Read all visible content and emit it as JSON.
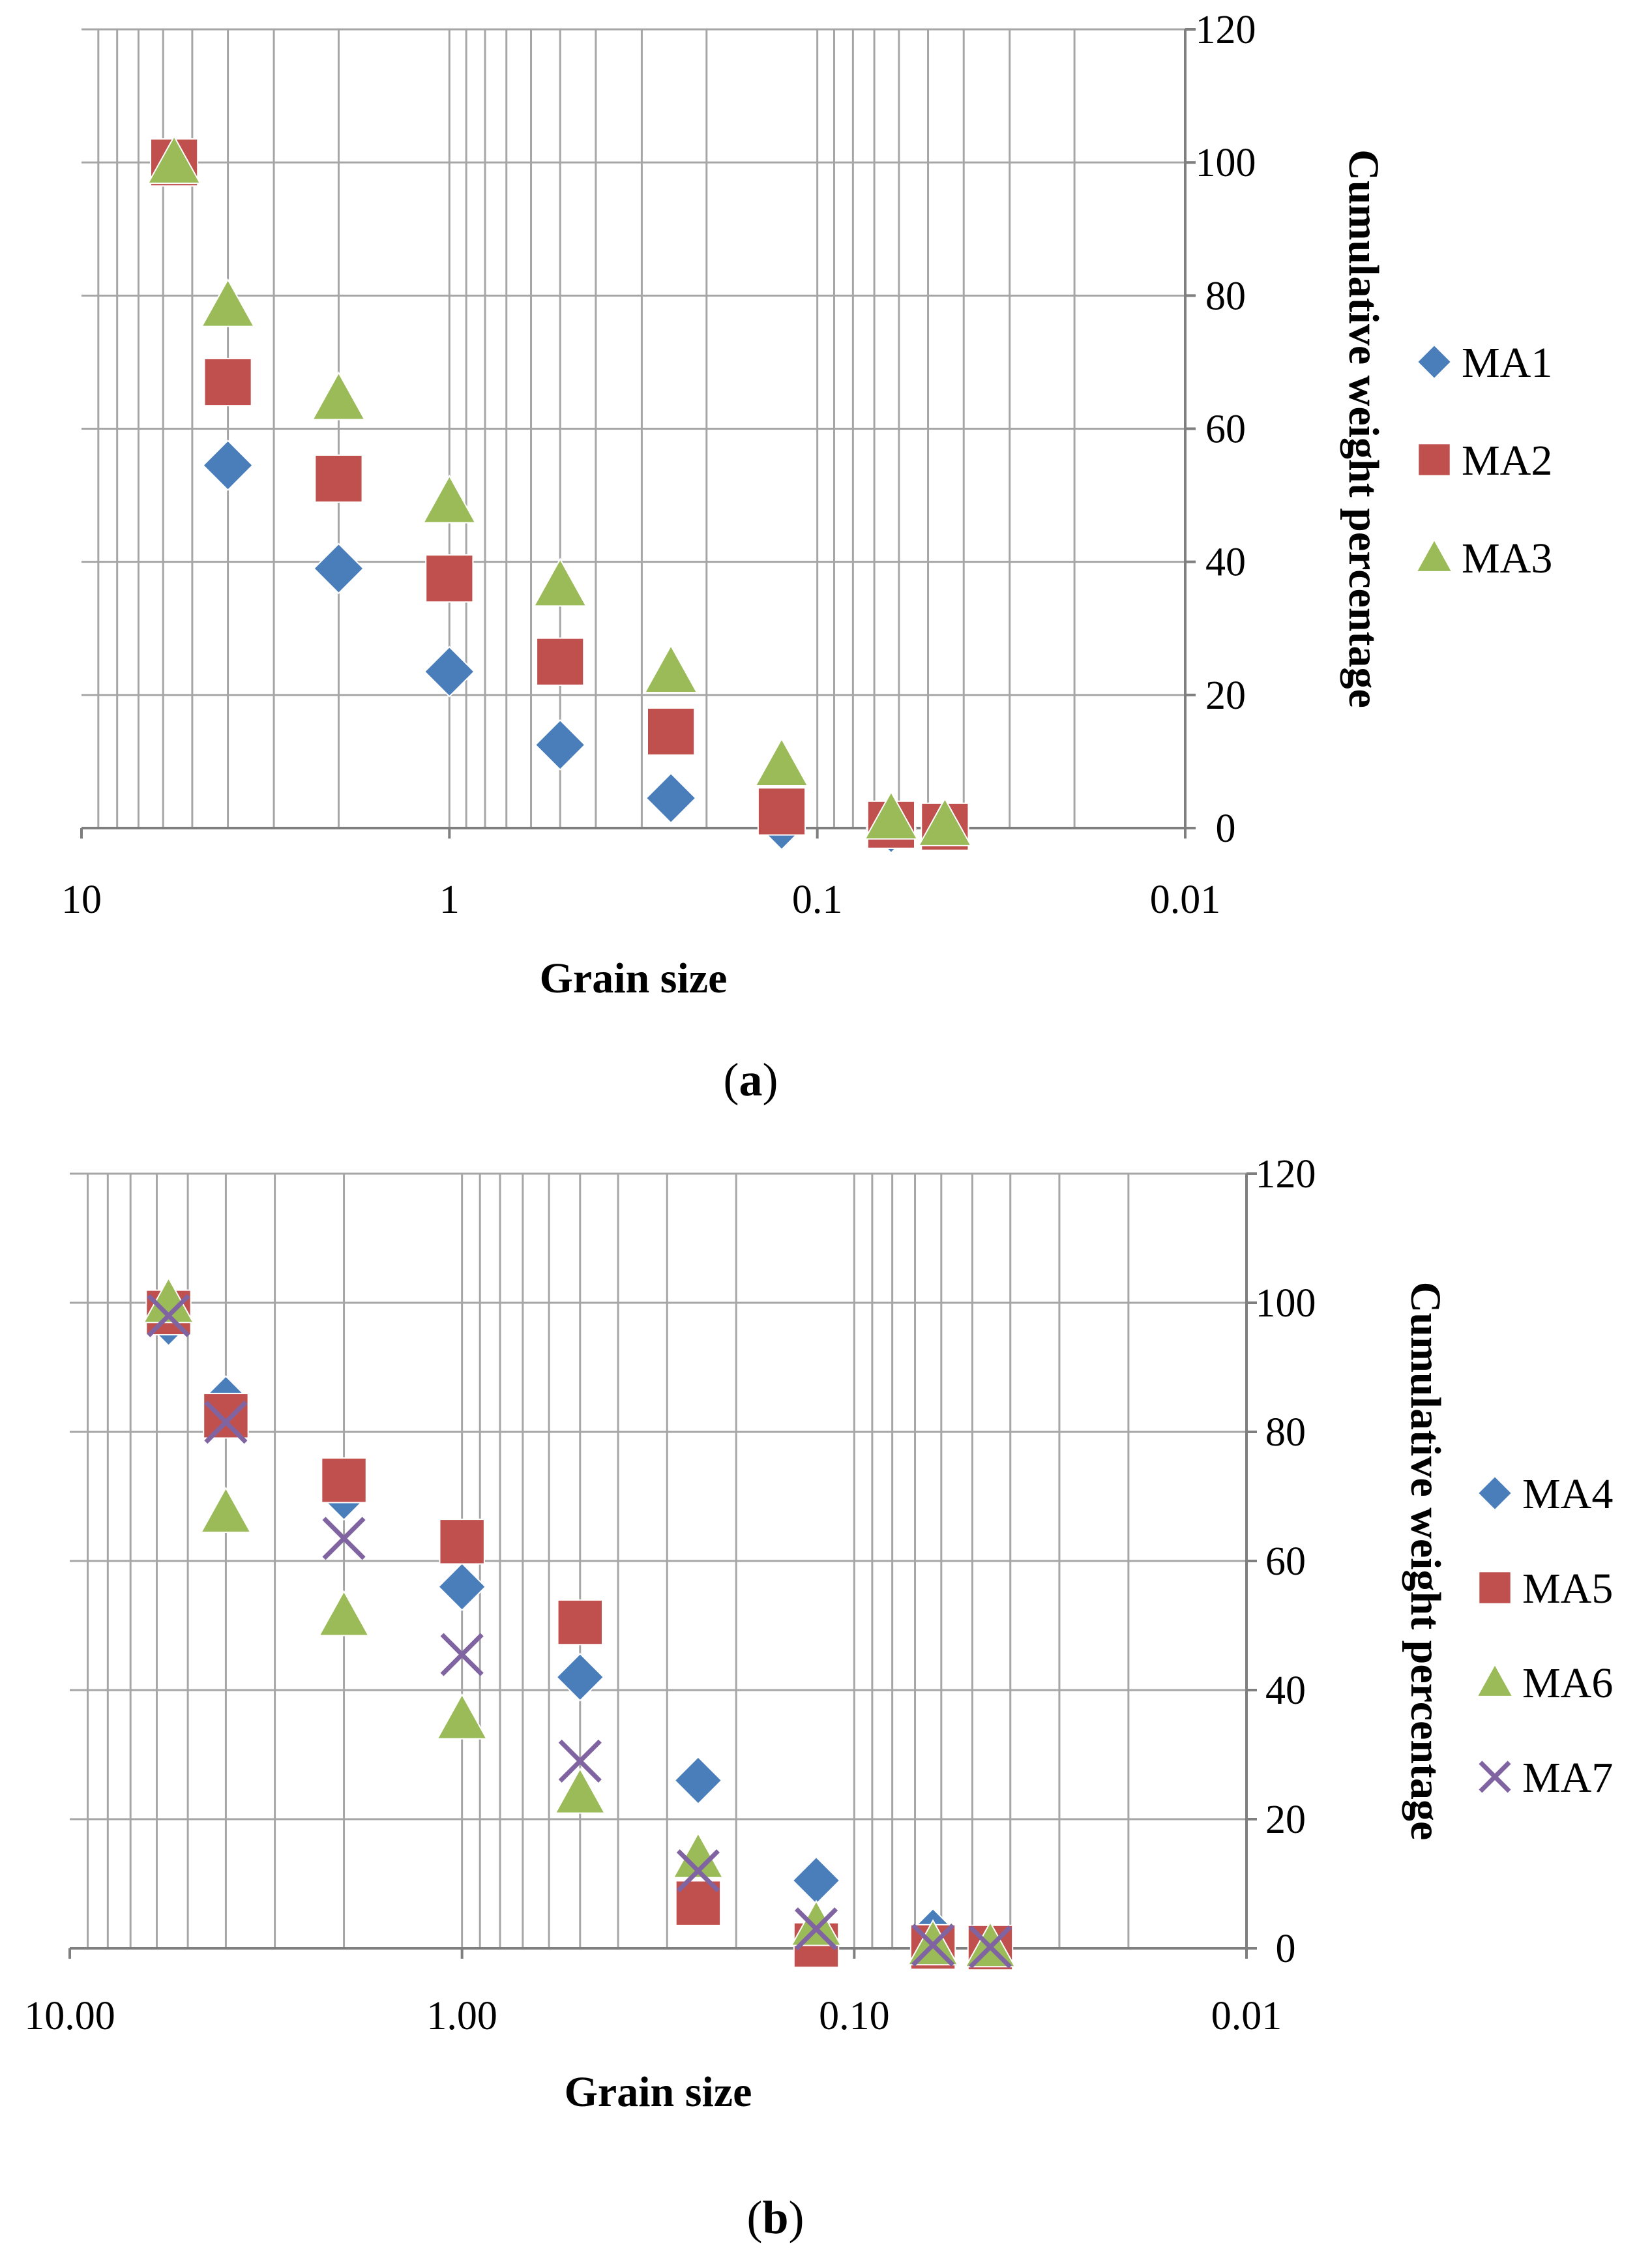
{
  "chart_data": [
    {
      "type": "scatter",
      "caption_letter": "a",
      "xlabel": "Grain size",
      "ylabel": "Cumulative weight percentage",
      "x_scale": "log",
      "x_reversed": true,
      "xlim": [
        10,
        0.01
      ],
      "ylim": [
        0,
        120
      ],
      "x_ticks": [
        10,
        1,
        0.1,
        0.01
      ],
      "x_tick_labels": [
        "10",
        "1",
        "0.1",
        "0.01"
      ],
      "y_ticks": [
        0,
        20,
        40,
        60,
        80,
        100,
        120
      ],
      "y_tick_labels": [
        "0",
        "20",
        "40",
        "60",
        "80",
        "100",
        "120"
      ],
      "y_axis_position": "right",
      "grid": true,
      "legend_position": "right",
      "series": [
        {
          "name": "MA1",
          "marker": "diamond",
          "color": "#4A7EBB",
          "x": [
            4,
            2,
            1,
            0.5,
            0.25,
            0.125,
            0.063
          ],
          "y": [
            54.5,
            39,
            23.5,
            12.5,
            4.5,
            0.5,
            0
          ]
        },
        {
          "name": "MA2",
          "marker": "square",
          "color": "#C0504D",
          "x": [
            5.6,
            4,
            2,
            1,
            0.5,
            0.25,
            0.125,
            0.063,
            0.045
          ],
          "y": [
            100,
            67,
            52.5,
            37.5,
            25,
            14.5,
            2.5,
            0.5,
            0.2
          ]
        },
        {
          "name": "MA3",
          "marker": "triangle",
          "color": "#9BBB59",
          "x": [
            5.6,
            4,
            2,
            1,
            0.5,
            0.25,
            0.125,
            0.063,
            0.045
          ],
          "y": [
            100,
            78.5,
            64.5,
            49,
            36.5,
            23.5,
            9.5,
            1.5,
            0.5
          ]
        }
      ]
    },
    {
      "type": "scatter",
      "caption_letter": "b",
      "xlabel": "Grain size",
      "ylabel": "Cumulative weight percentage",
      "x_scale": "log",
      "x_reversed": true,
      "xlim": [
        10,
        0.01
      ],
      "ylim": [
        0,
        120
      ],
      "x_ticks": [
        10,
        1,
        0.1,
        0.01
      ],
      "x_tick_labels": [
        "10.00",
        "1.00",
        "0.10",
        "0.01"
      ],
      "y_ticks": [
        0,
        20,
        40,
        60,
        80,
        100,
        120
      ],
      "y_tick_labels": [
        "0",
        "20",
        "40",
        "60",
        "80",
        "100",
        "120"
      ],
      "y_axis_position": "right",
      "grid": true,
      "legend_position": "right",
      "series": [
        {
          "name": "MA4",
          "marker": "diamond",
          "color": "#4A7EBB",
          "x": [
            5.6,
            4,
            2,
            1,
            0.5,
            0.25,
            0.125,
            0.063,
            0.045
          ],
          "y": [
            97,
            85,
            70,
            56,
            42,
            26,
            10.5,
            2.5,
            0.5
          ]
        },
        {
          "name": "MA5",
          "marker": "square",
          "color": "#C0504D",
          "x": [
            5.6,
            4,
            2,
            1,
            0.5,
            0.25,
            0.125,
            0.063,
            0.045
          ],
          "y": [
            98.5,
            82.5,
            72.5,
            63,
            50.5,
            7,
            0.5,
            0.2,
            0.1
          ]
        },
        {
          "name": "MA6",
          "marker": "triangle",
          "color": "#9BBB59",
          "x": [
            5.6,
            4,
            2,
            1,
            0.5,
            0.25,
            0.125,
            0.063,
            0.045
          ],
          "y": [
            100,
            67.5,
            51.5,
            35.5,
            24,
            14,
            3.5,
            0.5,
            0.2
          ]
        },
        {
          "name": "MA7",
          "marker": "cross",
          "color": "#8064A2",
          "x": [
            5.6,
            4,
            2,
            1,
            0.5,
            0.25,
            0.125,
            0.063,
            0.045
          ],
          "y": [
            98,
            81.5,
            63.5,
            45.5,
            29,
            12,
            3,
            0.5,
            0.2
          ]
        }
      ]
    }
  ]
}
